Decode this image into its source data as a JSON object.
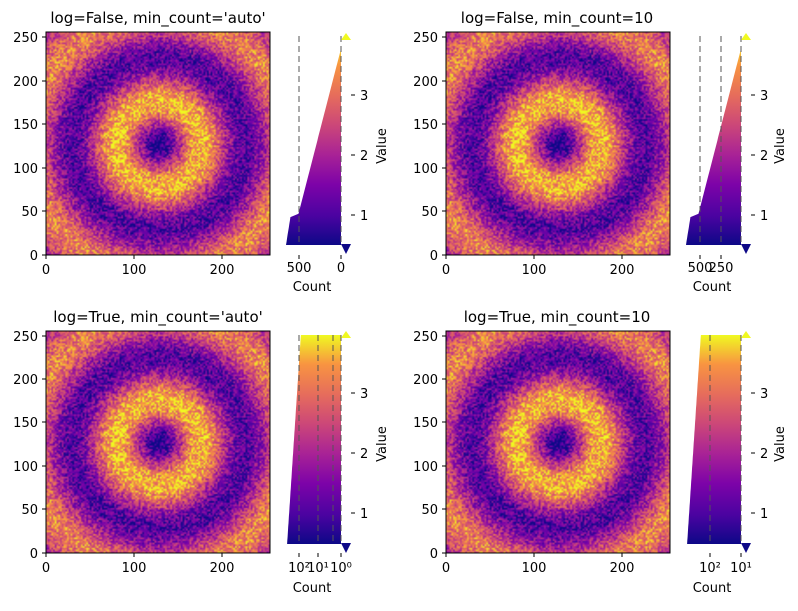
{
  "chart_data": [
    {
      "type": "heatmap",
      "title": "log=False, min_count='auto'",
      "xlim": [
        0,
        255
      ],
      "ylim": [
        0,
        255
      ],
      "xticks": [
        "0",
        "100",
        "200"
      ],
      "yticks": [
        "0",
        "50",
        "100",
        "150",
        "200",
        "250"
      ],
      "colormap": "plasma",
      "pattern": "concentric rings centered at (128, 128) with noise",
      "histogram": {
        "xlabel": "Count",
        "scale": "linear",
        "xlim": [
          780,
          0
        ],
        "xticks": [
          "500",
          "0"
        ],
        "ylim": [
          0.35,
          3.95
        ],
        "yticks": [
          "1",
          "2",
          "3"
        ],
        "ylabel": "Value",
        "min_count_lines": [
          0,
          500
        ]
      }
    },
    {
      "type": "heatmap",
      "title": "log=False, min_count=10",
      "xlim": [
        0,
        255
      ],
      "ylim": [
        0,
        255
      ],
      "xticks": [
        "0",
        "100",
        "200"
      ],
      "yticks": [
        "0",
        "50",
        "100",
        "150",
        "200",
        "250"
      ],
      "colormap": "plasma",
      "pattern": "concentric rings centered at (128, 128) with noise",
      "histogram": {
        "xlabel": "Count",
        "scale": "linear",
        "xlim": [
          780,
          0
        ],
        "xticks": [
          "500",
          "250"
        ],
        "ylim": [
          0.35,
          3.95
        ],
        "yticks": [
          "1",
          "2",
          "3"
        ],
        "ylabel": "Value",
        "min_count_lines": [
          10,
          250,
          500
        ]
      }
    },
    {
      "type": "heatmap",
      "title": "log=True, min_count='auto'",
      "xlim": [
        0,
        255
      ],
      "ylim": [
        0,
        255
      ],
      "xticks": [
        "0",
        "100",
        "200"
      ],
      "yticks": [
        "0",
        "50",
        "100",
        "150",
        "200",
        "250"
      ],
      "colormap": "plasma",
      "pattern": "concentric rings centered at (128, 128) with noise",
      "histogram": {
        "xlabel": "Count",
        "scale": "log",
        "xlim": [
          1000,
          0.5
        ],
        "xticks": [
          "10²",
          "10¹",
          "10⁰"
        ],
        "ylim": [
          0.35,
          3.95
        ],
        "yticks": [
          "1",
          "2",
          "3"
        ],
        "ylabel": "Value",
        "min_count_lines": [
          1,
          3,
          10,
          100
        ]
      }
    },
    {
      "type": "heatmap",
      "title": "log=True, min_count=10",
      "xlim": [
        0,
        255
      ],
      "ylim": [
        0,
        255
      ],
      "xticks": [
        "0",
        "100",
        "200"
      ],
      "yticks": [
        "0",
        "50",
        "100",
        "150",
        "200",
        "250"
      ],
      "colormap": "plasma",
      "pattern": "concentric rings centered at (128, 128) with noise",
      "histogram": {
        "xlabel": "Count",
        "scale": "log",
        "xlim": [
          1000,
          5
        ],
        "xticks": [
          "10²",
          "10¹"
        ],
        "ylim": [
          0.35,
          3.95
        ],
        "yticks": [
          "1",
          "2",
          "3"
        ],
        "ylabel": "Value",
        "min_count_lines": [
          10,
          100
        ]
      }
    }
  ]
}
